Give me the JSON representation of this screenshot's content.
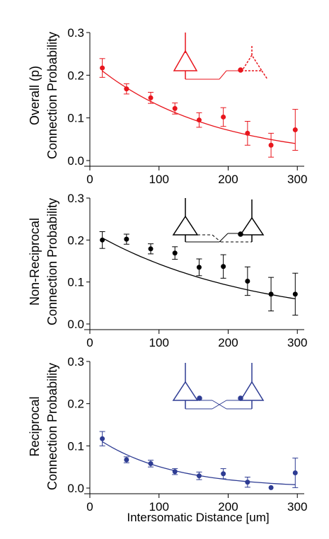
{
  "chart_data": [
    {
      "type": "scatter",
      "ylabel_lines": [
        "Overall (p)",
        "Connection Probability"
      ],
      "color": "#e8161d",
      "x": [
        18,
        53,
        88,
        123,
        158,
        193,
        228,
        262,
        297
      ],
      "y": [
        0.217,
        0.168,
        0.147,
        0.122,
        0.095,
        0.102,
        0.064,
        0.036,
        0.072
      ],
      "err": [
        0.022,
        0.012,
        0.013,
        0.013,
        0.017,
        0.022,
        0.028,
        0.028,
        0.048
      ],
      "fit_y_start": 0.21,
      "fit_y_end": 0.04,
      "xlim": [
        0,
        310
      ],
      "ylim": [
        0,
        0.3
      ],
      "yticks": [
        "0.0",
        "0.1",
        "0.2",
        "0.3"
      ],
      "xticks": [
        "0",
        "100",
        "200",
        "300"
      ],
      "grid": false
    },
    {
      "type": "scatter",
      "ylabel_lines": [
        "Non-Reciprocal",
        "Connection Probability"
      ],
      "color": "#000000",
      "x": [
        18,
        53,
        88,
        123,
        158,
        193,
        228,
        262,
        297
      ],
      "y": [
        0.2,
        0.202,
        0.179,
        0.169,
        0.135,
        0.137,
        0.102,
        0.071,
        0.071
      ],
      "err": [
        0.02,
        0.012,
        0.012,
        0.015,
        0.02,
        0.028,
        0.034,
        0.04,
        0.05
      ],
      "fit_y_start": 0.205,
      "fit_y_end": 0.06,
      "xlim": [
        0,
        310
      ],
      "ylim": [
        0,
        0.3
      ],
      "yticks": [
        "0.0",
        "0.1",
        "0.2",
        "0.3"
      ],
      "xticks": [
        "0",
        "100",
        "200",
        "300"
      ],
      "grid": false
    },
    {
      "type": "scatter",
      "ylabel_lines": [
        "Reciprocal",
        "Connection Probability"
      ],
      "color": "#2e3c93",
      "x": [
        18,
        53,
        88,
        123,
        158,
        193,
        228,
        262,
        297
      ],
      "y": [
        0.117,
        0.067,
        0.058,
        0.039,
        0.029,
        0.034,
        0.014,
        0.001,
        0.036
      ],
      "err": [
        0.017,
        0.007,
        0.008,
        0.007,
        0.009,
        0.012,
        0.012,
        0.0,
        0.035
      ],
      "fit_y_start": 0.11,
      "fit_y_end": 0.008,
      "xlim": [
        0,
        310
      ],
      "ylim": [
        0,
        0.3
      ],
      "yticks": [
        "0.0",
        "0.1",
        "0.2",
        "0.3"
      ],
      "xticks": [
        "0",
        "100",
        "200",
        "300"
      ],
      "grid": false
    }
  ],
  "xlabel": "Intersomatic Distance [um]"
}
